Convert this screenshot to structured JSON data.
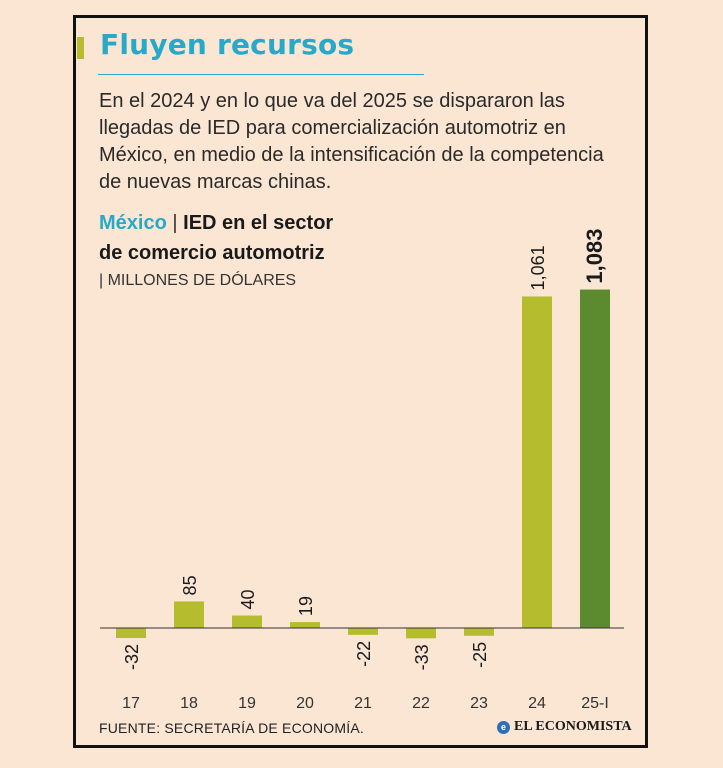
{
  "header": {
    "title": "Fluyen recursos",
    "intro": "En el 2024 y en lo que va del 2025 se dispararon las llegadas de IED para comercialización automotriz en México, en medio de la intensificación de la competencia de nuevas marcas chinas."
  },
  "subtitle": {
    "country": "México",
    "separator": "|",
    "topic_line1": "IED en el sector",
    "topic_line2": "de comercio automotriz",
    "units": "| MILLONES DE DÓLARES"
  },
  "footer": {
    "source": "FUENTE: SECRETARÍA DE ECONOMÍA.",
    "brand": "EL ECONOMISTA",
    "brand_icon": "e"
  },
  "chart_data": {
    "type": "bar",
    "categories": [
      "17",
      "18",
      "19",
      "20",
      "21",
      "22",
      "23",
      "24",
      "25-I"
    ],
    "values": [
      -32,
      85,
      40,
      19,
      -22,
      -33,
      -25,
      1061,
      1083
    ],
    "value_labels": [
      "-32",
      "85",
      "40",
      "19",
      "-22",
      "-33",
      "-25",
      "1,061",
      "1,083"
    ],
    "highlight_index": 8,
    "colors": {
      "bar": "#b5bd2f",
      "highlight": "#5c8a2e",
      "axis": "#333333"
    },
    "grid": false,
    "legend": "none"
  }
}
